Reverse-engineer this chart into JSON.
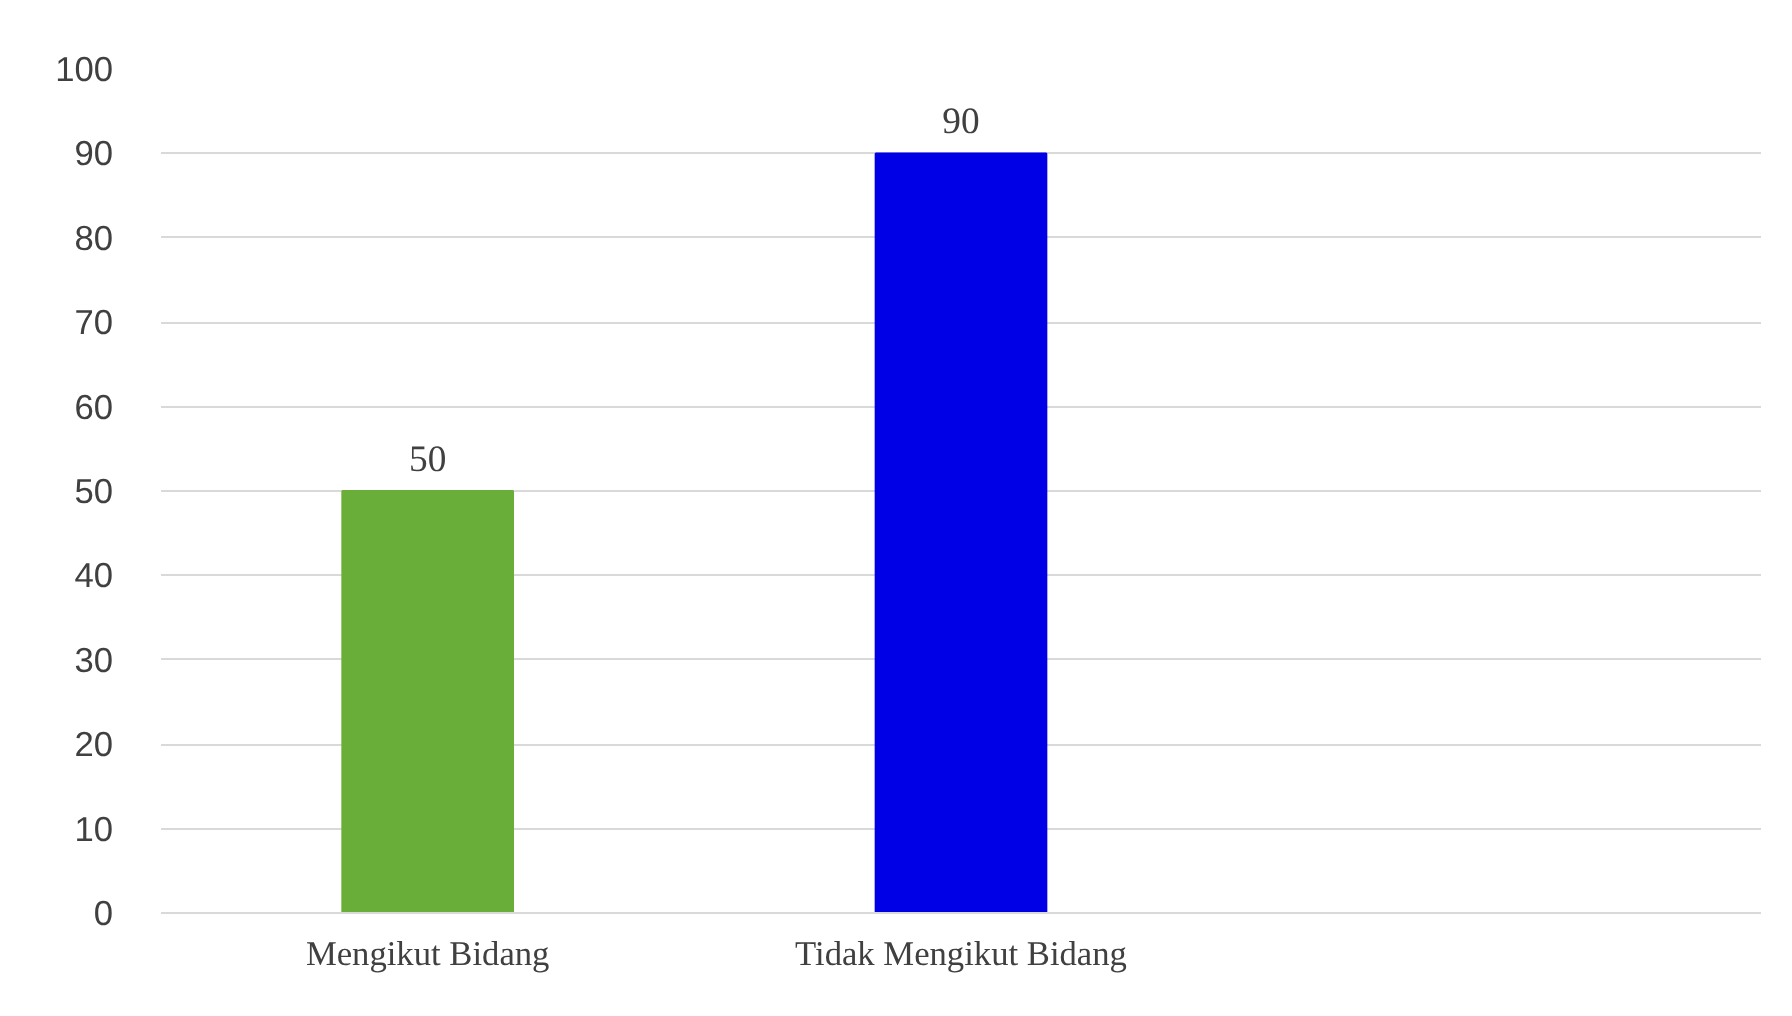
{
  "chart_data": {
    "type": "bar",
    "categories": [
      "Mengikut Bidang",
      "Tidak Mengikut Bidang",
      null
    ],
    "values": [
      50,
      90,
      null
    ],
    "colors": [
      "#6aae3a",
      "#0000e6",
      "#0000e6"
    ],
    "ylim": [
      0,
      100
    ],
    "yticks": [
      0,
      10,
      20,
      30,
      40,
      50,
      60,
      70,
      80,
      90,
      100
    ],
    "grid": "y",
    "data_labels": true
  }
}
